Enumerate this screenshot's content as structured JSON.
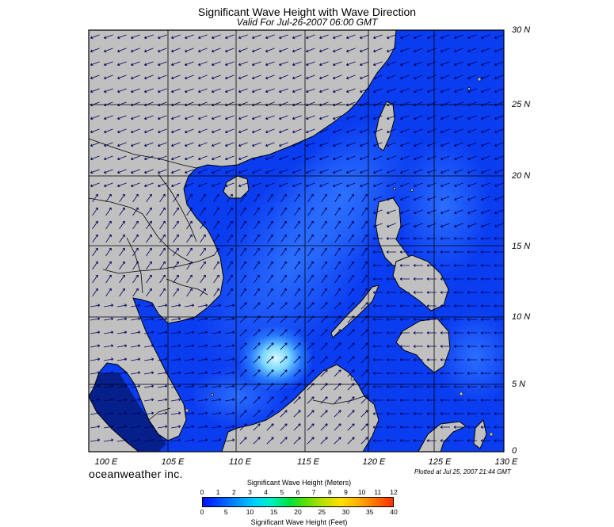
{
  "title": "Significant Wave Height with Wave Direction",
  "subtitle": "Valid For Jul-26-2007 06:00 GMT",
  "lat_labels": [
    "30 N",
    "25 N",
    "20 N",
    "15 N",
    "10 N",
    "5 N",
    "0"
  ],
  "lon_labels": [
    "100 E",
    "105 E",
    "110 E",
    "115 E",
    "120 E",
    "125 E",
    "130 E"
  ],
  "brand": "oceanweather inc.",
  "plotted": "Plotted at Jul 25, 2007 21:44 GMT",
  "colorbar": {
    "meters_title": "Significant Wave Height (Meters)",
    "feet_title": "Significant Wave Height (Feet)",
    "meters_ticks": [
      "0",
      "1",
      "2",
      "3",
      "4",
      "5",
      "6",
      "7",
      "8",
      "9",
      "10",
      "11",
      "12"
    ],
    "feet_ticks": [
      "0",
      "5",
      "10",
      "15",
      "20",
      "25",
      "30",
      "35",
      "40"
    ],
    "colors": [
      "#0010ff",
      "#0050ff",
      "#0090ff",
      "#00d0ff",
      "#00f0c0",
      "#00e040",
      "#60e000",
      "#c0e000",
      "#ffe000",
      "#ffb000",
      "#ff7000",
      "#ff3000"
    ]
  },
  "colors": {
    "land": "#c0c0c0",
    "sea": "#0a3cf0",
    "sea_light": "#2a74ff",
    "wave_max": "#c8f4ff",
    "arrow": "#00005a"
  }
}
